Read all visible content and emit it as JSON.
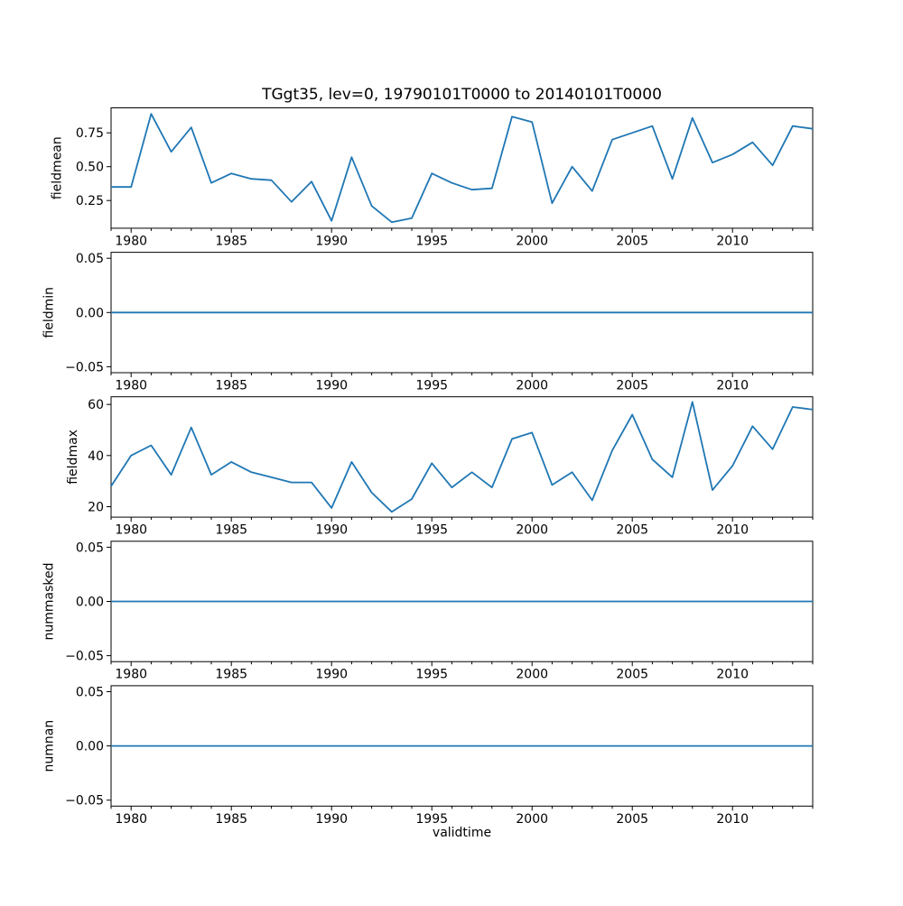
{
  "figure": {
    "title": "TGgt35, lev=0, 19790101T0000 to 20140101T0000",
    "background": "#ffffff",
    "line_color": "#1f77b4",
    "axis_color": "#000000"
  },
  "chart_data": {
    "type": "line",
    "title": "TGgt35, lev=0, 19790101T0000 to 20140101T0000",
    "x_label": "validtime",
    "xlim": [
      1979,
      2014
    ],
    "x_major_ticks": [
      1980,
      1985,
      1990,
      1995,
      2000,
      2005,
      2010
    ],
    "x_major_tick_labels": [
      "1980",
      "1985",
      "1990",
      "1995",
      "2000",
      "2005",
      "2010"
    ],
    "x_minor_tick_every_years": 1,
    "grid": false,
    "legend": false,
    "x": [
      1979,
      1980,
      1981,
      1982,
      1983,
      1984,
      1985,
      1986,
      1987,
      1988,
      1989,
      1990,
      1991,
      1992,
      1993,
      1994,
      1995,
      1996,
      1997,
      1998,
      1999,
      2000,
      2001,
      2002,
      2003,
      2004,
      2005,
      2006,
      2007,
      2008,
      2009,
      2010,
      2011,
      2012,
      2013,
      2014
    ],
    "subplots": [
      {
        "name": "fieldmean",
        "ylabel": "fieldmean",
        "ylim": [
          0.045,
          0.935
        ],
        "yticks": [
          0.25,
          0.5,
          0.75
        ],
        "ytick_labels": [
          "0.25",
          "0.50",
          "0.75"
        ],
        "values": [
          0.35,
          0.35,
          0.89,
          0.61,
          0.79,
          0.38,
          0.45,
          0.41,
          0.4,
          0.24,
          0.39,
          0.1,
          0.57,
          0.21,
          0.09,
          0.12,
          0.45,
          0.38,
          0.33,
          0.34,
          0.87,
          0.83,
          0.23,
          0.5,
          0.32,
          0.7,
          0.75,
          0.8,
          0.41,
          0.86,
          0.53,
          0.59,
          0.68,
          0.51,
          0.8,
          0.78
        ]
      },
      {
        "name": "fieldmin",
        "ylabel": "fieldmin",
        "ylim": [
          -0.0555,
          0.0555
        ],
        "yticks": [
          -0.05,
          0.0,
          0.05
        ],
        "ytick_labels": [
          "−0.05",
          "0.00",
          "0.05"
        ],
        "values": [
          0,
          0,
          0,
          0,
          0,
          0,
          0,
          0,
          0,
          0,
          0,
          0,
          0,
          0,
          0,
          0,
          0,
          0,
          0,
          0,
          0,
          0,
          0,
          0,
          0,
          0,
          0,
          0,
          0,
          0,
          0,
          0,
          0,
          0,
          0,
          0
        ]
      },
      {
        "name": "fieldmax",
        "ylabel": "fieldmax",
        "ylim": [
          15.9,
          63.0
        ],
        "yticks": [
          20,
          40,
          60
        ],
        "ytick_labels": [
          "20",
          "40",
          "60"
        ],
        "values": [
          28,
          40,
          44,
          32.5,
          51,
          32.5,
          37.5,
          33.5,
          31.5,
          29.5,
          29.5,
          19.5,
          37.5,
          25.5,
          18,
          23,
          37,
          27.5,
          33.5,
          27.5,
          46.5,
          49,
          28.5,
          33.5,
          22.5,
          42,
          56,
          38.5,
          31.5,
          61,
          26.5,
          36,
          51.5,
          42.5,
          59,
          58
        ]
      },
      {
        "name": "nummasked",
        "ylabel": "nummasked",
        "ylim": [
          -0.0555,
          0.0555
        ],
        "yticks": [
          -0.05,
          0.0,
          0.05
        ],
        "ytick_labels": [
          "−0.05",
          "0.00",
          "0.05"
        ],
        "values": [
          0,
          0,
          0,
          0,
          0,
          0,
          0,
          0,
          0,
          0,
          0,
          0,
          0,
          0,
          0,
          0,
          0,
          0,
          0,
          0,
          0,
          0,
          0,
          0,
          0,
          0,
          0,
          0,
          0,
          0,
          0,
          0,
          0,
          0,
          0,
          0
        ]
      },
      {
        "name": "numnan",
        "ylabel": "numnan",
        "ylim": [
          -0.0555,
          0.0555
        ],
        "yticks": [
          -0.05,
          0.0,
          0.05
        ],
        "ytick_labels": [
          "−0.05",
          "0.00",
          "0.05"
        ],
        "values": [
          0,
          0,
          0,
          0,
          0,
          0,
          0,
          0,
          0,
          0,
          0,
          0,
          0,
          0,
          0,
          0,
          0,
          0,
          0,
          0,
          0,
          0,
          0,
          0,
          0,
          0,
          0,
          0,
          0,
          0,
          0,
          0,
          0,
          0,
          0,
          0
        ]
      }
    ]
  }
}
